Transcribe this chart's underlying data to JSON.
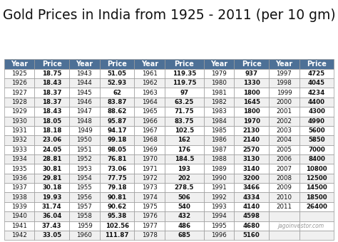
{
  "title": "Gold Prices in India from 1925 - 2011 (per 10 gm)",
  "columns": [
    "Year",
    "Price",
    "Year",
    "Price",
    "Year",
    "Price",
    "Year",
    "Price",
    "Year",
    "Price"
  ],
  "col1": [
    [
      1925,
      "18.75"
    ],
    [
      1926,
      "18.43"
    ],
    [
      1927,
      "18.37"
    ],
    [
      1928,
      "18.37"
    ],
    [
      1929,
      "18.43"
    ],
    [
      1930,
      "18.05"
    ],
    [
      1931,
      "18.18"
    ],
    [
      1932,
      "23.06"
    ],
    [
      1933,
      "24.05"
    ],
    [
      1934,
      "28.81"
    ],
    [
      1935,
      "30.81"
    ],
    [
      1936,
      "29.81"
    ],
    [
      1937,
      "30.18"
    ],
    [
      1938,
      "19.93"
    ],
    [
      1939,
      "31.74"
    ],
    [
      1940,
      "36.04"
    ],
    [
      1941,
      "37.43"
    ],
    [
      1942,
      "33.05"
    ]
  ],
  "col2": [
    [
      1943,
      "51.05"
    ],
    [
      1944,
      "52.93"
    ],
    [
      1945,
      "62"
    ],
    [
      1946,
      "83.87"
    ],
    [
      1947,
      "88.62"
    ],
    [
      1948,
      "95.87"
    ],
    [
      1949,
      "94.17"
    ],
    [
      1950,
      "99.18"
    ],
    [
      1951,
      "98.05"
    ],
    [
      1952,
      "76.81"
    ],
    [
      1953,
      "73.06"
    ],
    [
      1954,
      "77.75"
    ],
    [
      1955,
      "79.18"
    ],
    [
      1956,
      "90.81"
    ],
    [
      1957,
      "90.62"
    ],
    [
      1958,
      "95.38"
    ],
    [
      1959,
      "102.56"
    ],
    [
      1960,
      "111.87"
    ]
  ],
  "col3": [
    [
      1961,
      "119.35"
    ],
    [
      1962,
      "119.75"
    ],
    [
      1963,
      "97"
    ],
    [
      1964,
      "63.25"
    ],
    [
      1965,
      "71.75"
    ],
    [
      1966,
      "83.75"
    ],
    [
      1967,
      "102.5"
    ],
    [
      1968,
      "162"
    ],
    [
      1969,
      "176"
    ],
    [
      1970,
      "184.5"
    ],
    [
      1971,
      "193"
    ],
    [
      1972,
      "202"
    ],
    [
      1973,
      "278.5"
    ],
    [
      1974,
      "506"
    ],
    [
      1975,
      "540"
    ],
    [
      1976,
      "432"
    ],
    [
      1977,
      "486"
    ],
    [
      1978,
      "685"
    ]
  ],
  "col4": [
    [
      1979,
      "937"
    ],
    [
      1980,
      "1330"
    ],
    [
      1981,
      "1800"
    ],
    [
      1982,
      "1645"
    ],
    [
      1983,
      "1800"
    ],
    [
      1984,
      "1970"
    ],
    [
      1985,
      "2130"
    ],
    [
      1986,
      "2140"
    ],
    [
      1987,
      "2570"
    ],
    [
      1988,
      "3130"
    ],
    [
      1989,
      "3140"
    ],
    [
      1990,
      "3200"
    ],
    [
      1991,
      "3466"
    ],
    [
      1992,
      "4334"
    ],
    [
      1993,
      "4140"
    ],
    [
      1994,
      "4598"
    ],
    [
      1995,
      "4680"
    ],
    [
      1996,
      "5160"
    ]
  ],
  "col5": [
    [
      1997,
      "4725"
    ],
    [
      1998,
      "4045"
    ],
    [
      1999,
      "4234"
    ],
    [
      2000,
      "4400"
    ],
    [
      2001,
      "4300"
    ],
    [
      2002,
      "4990"
    ],
    [
      2003,
      "5600"
    ],
    [
      2004,
      "5850"
    ],
    [
      2005,
      "7000"
    ],
    [
      2006,
      "8400"
    ],
    [
      2007,
      "10800"
    ],
    [
      2008,
      "12500"
    ],
    [
      2009,
      "14500"
    ],
    [
      2010,
      "18500"
    ],
    [
      2011,
      "26400"
    ]
  ],
  "header_bg": "#4d7096",
  "header_text": "#ffffff",
  "row_bg_even": "#ffffff",
  "row_bg_odd": "#f0f0f0",
  "border_color": "#999999",
  "title_color": "#111111",
  "watermark": "jagoinvestor.com",
  "title_fontsize": 13.5,
  "header_fontsize": 7.0,
  "cell_fontsize": 6.2
}
